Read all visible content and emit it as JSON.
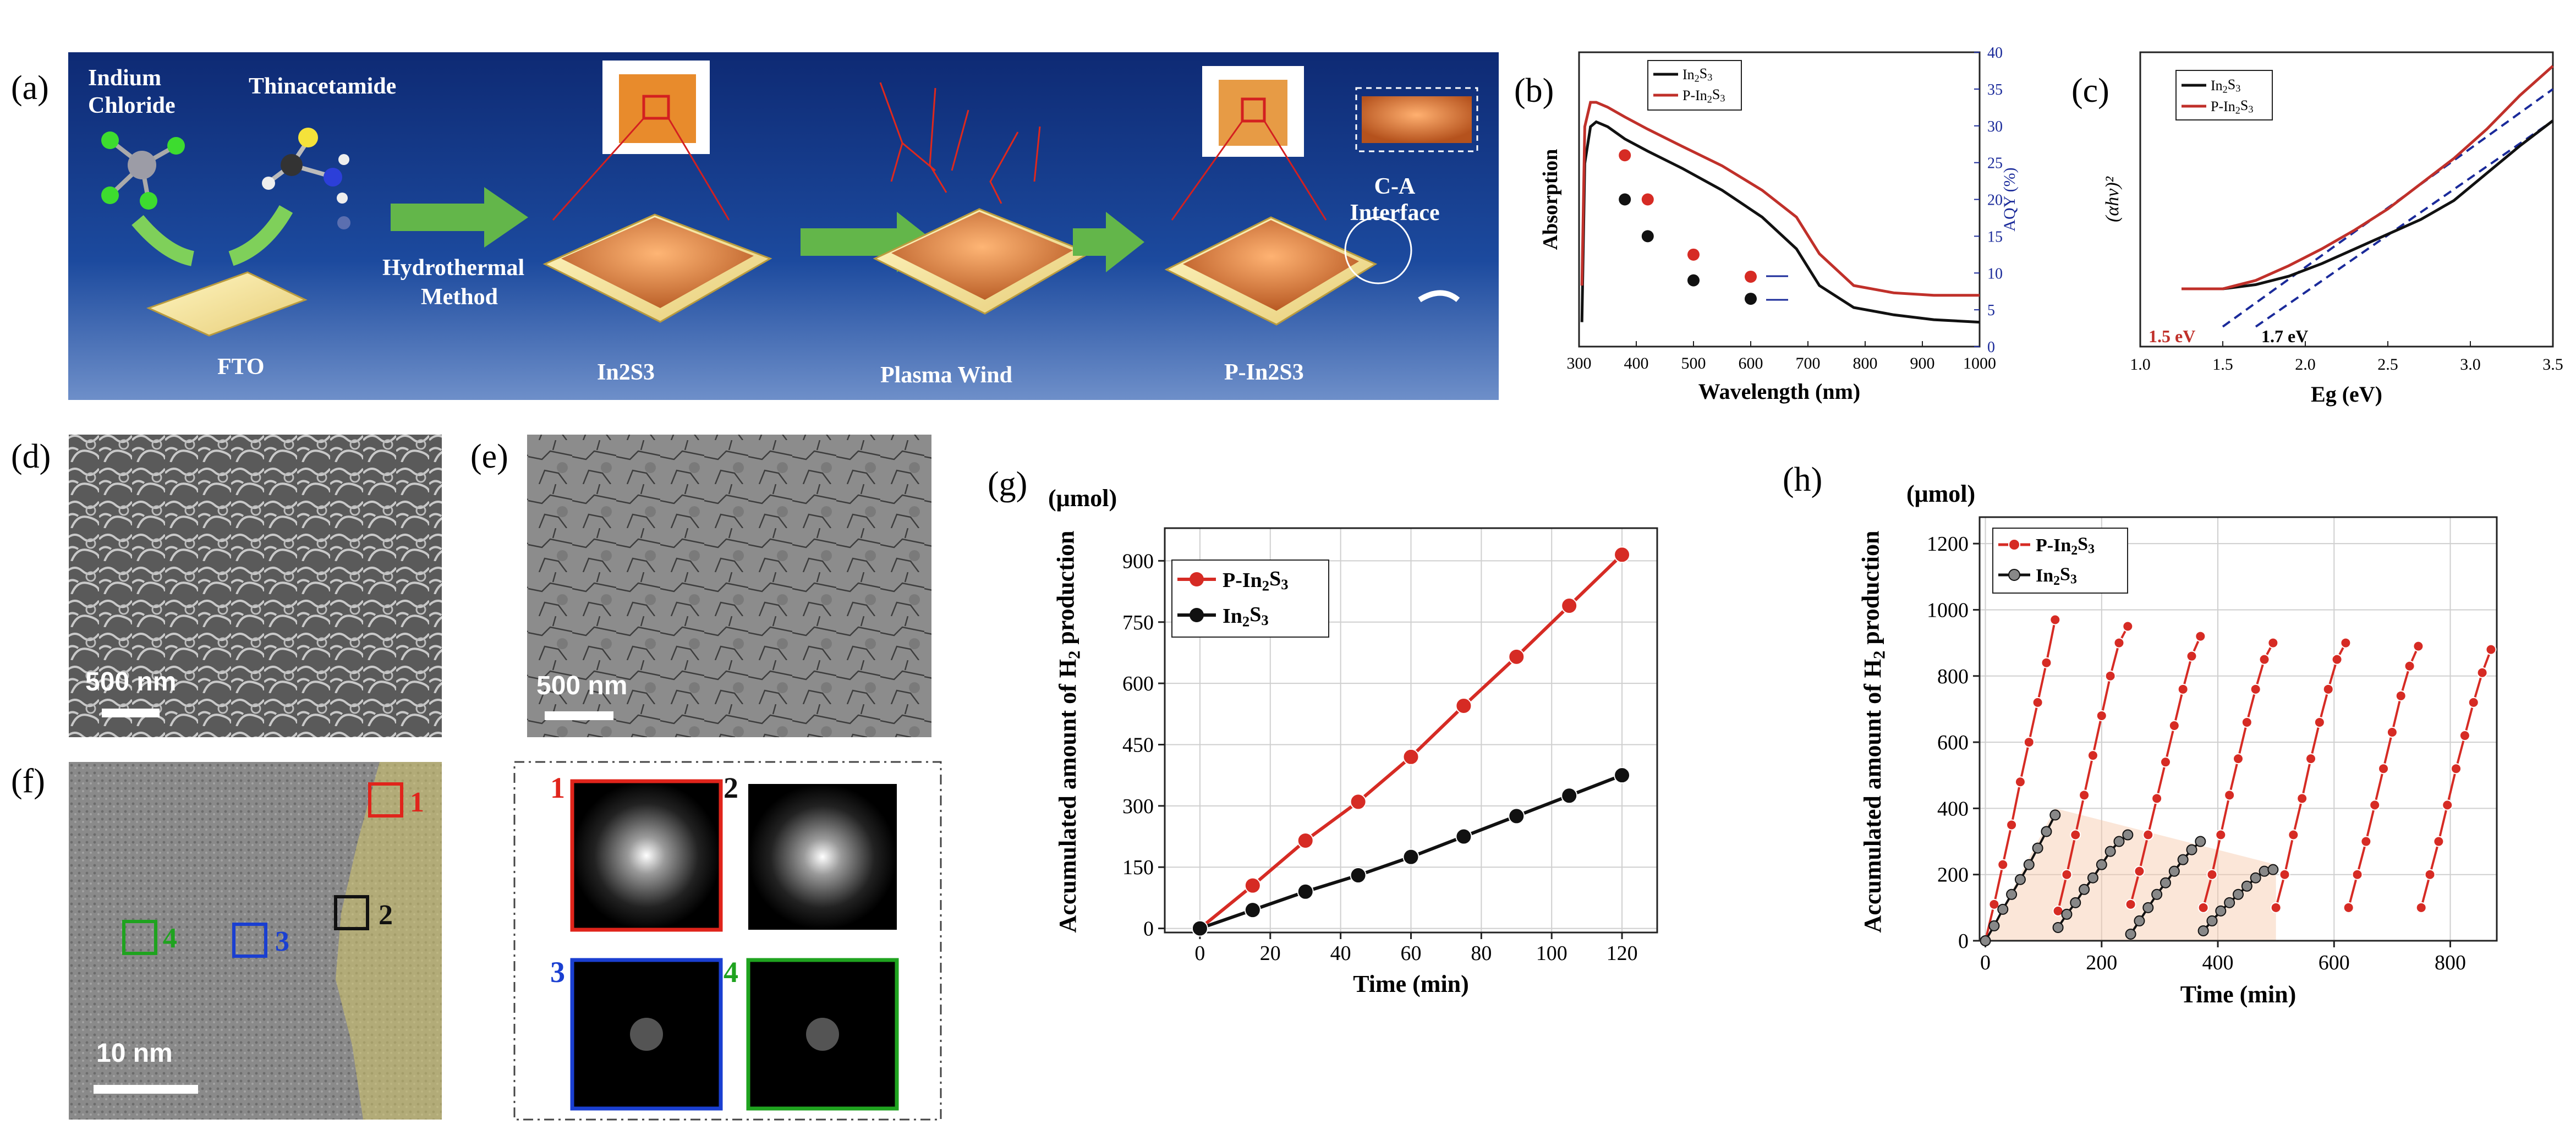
{
  "panels": {
    "a": {
      "label": "(a)",
      "reagent1": [
        "Indium",
        "Chloride"
      ],
      "reagent2": "Thinacetamide",
      "substrate": "FTO",
      "method": [
        "Hydrothermal",
        "Method"
      ],
      "step2": "In2S3",
      "step3": "Plasma Wind",
      "step4": "P-In2S3",
      "interface": [
        "C-A",
        "Interface"
      ]
    },
    "b": {
      "label": "(b)"
    },
    "c": {
      "label": "(c)"
    },
    "d": {
      "label": "(d)",
      "scale": "500 nm"
    },
    "e": {
      "label": "(e)",
      "scale": "500 nm"
    },
    "f": {
      "label": "(f)",
      "scale": "10 nm",
      "box_labels": [
        "1",
        "2",
        "3",
        "4"
      ]
    },
    "fft": {
      "labels": [
        "1",
        "2",
        "3",
        "4"
      ]
    },
    "g": {
      "label": "(g)"
    },
    "h": {
      "label": "(h)"
    }
  },
  "chart_data": [
    {
      "id": "b",
      "type": "line",
      "title": "",
      "xlabel": "Wavelength (nm)",
      "ylabel": "Absorption",
      "ylabel_right": "AQY (%)",
      "xlim": [
        300,
        1000
      ],
      "xticks": [
        300,
        400,
        500,
        600,
        700,
        800,
        900,
        1000
      ],
      "ylim_right": [
        0,
        40
      ],
      "yticks_right": [
        0,
        5,
        10,
        15,
        20,
        25,
        30,
        35,
        40
      ],
      "legend": [
        "In2S3",
        "P-In2S3"
      ],
      "series": [
        {
          "name": "In2S3",
          "color": "#111111",
          "x": [
            305,
            310,
            320,
            330,
            350,
            380,
            420,
            480,
            550,
            620,
            680,
            720,
            780,
            850,
            920,
            1000
          ],
          "y": [
            0.1,
            0.75,
            0.9,
            0.92,
            0.9,
            0.85,
            0.8,
            0.73,
            0.64,
            0.53,
            0.4,
            0.25,
            0.16,
            0.13,
            0.11,
            0.1
          ]
        },
        {
          "name": "P-In2S3",
          "color": "#c0302a",
          "x": [
            305,
            310,
            320,
            330,
            350,
            380,
            420,
            480,
            550,
            620,
            680,
            720,
            780,
            850,
            920,
            1000
          ],
          "y": [
            0.25,
            0.9,
            1.0,
            1.0,
            0.98,
            0.94,
            0.89,
            0.82,
            0.74,
            0.64,
            0.53,
            0.38,
            0.25,
            0.22,
            0.21,
            0.21
          ]
        }
      ],
      "aqy_points": [
        {
          "name": "P-In2S3",
          "x": [
            380,
            420,
            500,
            600
          ],
          "y": [
            26,
            20,
            12.5,
            9.5
          ]
        },
        {
          "name": "In2S3",
          "x": [
            380,
            420,
            500,
            600
          ],
          "y": [
            20,
            15,
            9,
            6.5
          ]
        }
      ]
    },
    {
      "id": "c",
      "type": "line",
      "title": "",
      "xlabel": "Eg (eV)",
      "ylabel": "(αhν)²",
      "xlim": [
        1.0,
        3.5
      ],
      "xticks": [
        1.0,
        1.5,
        2.0,
        2.5,
        3.0,
        3.5
      ],
      "legend": [
        "In2S3",
        "P-In2S3"
      ],
      "annotations": [
        "1.5 eV",
        "1.7 eV"
      ],
      "series": [
        {
          "name": "In2S3",
          "color": "#111111",
          "x": [
            1.25,
            1.5,
            1.7,
            1.9,
            2.1,
            2.3,
            2.5,
            2.7,
            2.9,
            3.1,
            3.3,
            3.5
          ],
          "y": [
            0.0,
            0.0,
            0.02,
            0.06,
            0.12,
            0.19,
            0.26,
            0.33,
            0.42,
            0.55,
            0.68,
            0.8
          ]
        },
        {
          "name": "P-In2S3",
          "color": "#c0302a",
          "x": [
            1.25,
            1.5,
            1.7,
            1.9,
            2.1,
            2.3,
            2.5,
            2.7,
            2.9,
            3.1,
            3.3,
            3.5
          ],
          "y": [
            0.0,
            0.0,
            0.04,
            0.11,
            0.19,
            0.28,
            0.38,
            0.5,
            0.62,
            0.76,
            0.92,
            1.06
          ]
        }
      ],
      "tangents": [
        {
          "x": [
            1.5,
            3.5
          ],
          "y": [
            -0.18,
            0.95
          ]
        },
        {
          "x": [
            1.7,
            3.5
          ],
          "y": [
            -0.18,
            0.8
          ]
        }
      ]
    },
    {
      "id": "g",
      "type": "line",
      "title": "",
      "xlabel": "Time (min)",
      "ylabel": "Accumulated amount of H2 production",
      "unit_label": "(μmol)",
      "xlim": [
        -10,
        130
      ],
      "ylim": [
        -10,
        980
      ],
      "xticks": [
        0,
        20,
        40,
        60,
        80,
        100,
        120
      ],
      "yticks": [
        0,
        150,
        300,
        450,
        600,
        750,
        900
      ],
      "grid": true,
      "legend": [
        "P-In2S3",
        "In2S3"
      ],
      "series": [
        {
          "name": "P-In2S3",
          "color": "#d62b24",
          "x": [
            0,
            15,
            30,
            45,
            60,
            75,
            90,
            105,
            120
          ],
          "y": [
            0,
            105,
            215,
            310,
            420,
            545,
            665,
            790,
            915
          ]
        },
        {
          "name": "In2S3",
          "color": "#111111",
          "x": [
            0,
            15,
            30,
            45,
            60,
            75,
            90,
            105,
            120
          ],
          "y": [
            0,
            45,
            90,
            130,
            175,
            225,
            275,
            325,
            375
          ]
        }
      ]
    },
    {
      "id": "h",
      "type": "scatter",
      "title": "",
      "xlabel": "Time (min)",
      "ylabel": "Accumulated amount of H2 production",
      "unit_label": "(μmol)",
      "xlim": [
        -10,
        880
      ],
      "ylim": [
        0,
        1280
      ],
      "xticks": [
        0,
        200,
        400,
        600,
        800
      ],
      "yticks": [
        0,
        200,
        400,
        600,
        800,
        1000,
        1200
      ],
      "grid": true,
      "legend": [
        "P-In2S3",
        "In2S3"
      ],
      "series": [
        {
          "name": "P-In2S3",
          "color": "#d62b24",
          "cycles": [
            {
              "x": [
                0,
                15,
                30,
                45,
                60,
                75,
                90,
                105,
                120
              ],
              "y": [
                0,
                110,
                230,
                350,
                480,
                600,
                720,
                840,
                970
              ]
            },
            {
              "x": [
                125,
                140,
                155,
                170,
                185,
                200,
                215,
                230,
                245
              ],
              "y": [
                90,
                200,
                320,
                440,
                560,
                680,
                800,
                900,
                950
              ]
            },
            {
              "x": [
                250,
                265,
                280,
                295,
                310,
                325,
                340,
                355,
                370
              ],
              "y": [
                110,
                210,
                320,
                430,
                540,
                650,
                760,
                860,
                920
              ]
            },
            {
              "x": [
                375,
                390,
                405,
                420,
                435,
                450,
                465,
                480,
                495
              ],
              "y": [
                100,
                200,
                320,
                440,
                550,
                660,
                760,
                850,
                900
              ]
            },
            {
              "x": [
                500,
                515,
                530,
                545,
                560,
                575,
                590,
                605,
                620
              ],
              "y": [
                100,
                200,
                320,
                430,
                550,
                660,
                760,
                850,
                900
              ]
            },
            {
              "x": [
                625,
                640,
                655,
                670,
                685,
                700,
                715,
                730,
                745
              ],
              "y": [
                100,
                200,
                300,
                410,
                520,
                630,
                740,
                830,
                890
              ]
            },
            {
              "x": [
                750,
                765,
                780,
                795,
                810,
                825,
                840,
                855,
                870
              ],
              "y": [
                100,
                200,
                300,
                410,
                520,
                620,
                720,
                810,
                880
              ]
            }
          ]
        },
        {
          "name": "In2S3",
          "color": "#111111",
          "cycles": [
            {
              "x": [
                0,
                15,
                30,
                45,
                60,
                75,
                90,
                105,
                120
              ],
              "y": [
                0,
                45,
                95,
                140,
                185,
                230,
                280,
                330,
                380
              ]
            },
            {
              "x": [
                125,
                140,
                155,
                170,
                185,
                200,
                215,
                230,
                245
              ],
              "y": [
                40,
                80,
                115,
                155,
                190,
                230,
                270,
                300,
                320
              ]
            },
            {
              "x": [
                250,
                265,
                280,
                295,
                310,
                325,
                340,
                355,
                370
              ],
              "y": [
                20,
                60,
                100,
                140,
                175,
                210,
                245,
                275,
                300
              ]
            },
            {
              "x": [
                375,
                390,
                405,
                420,
                435,
                450,
                465,
                480,
                495
              ],
              "y": [
                30,
                60,
                90,
                115,
                140,
                165,
                190,
                210,
                215
              ]
            }
          ]
        }
      ]
    }
  ]
}
